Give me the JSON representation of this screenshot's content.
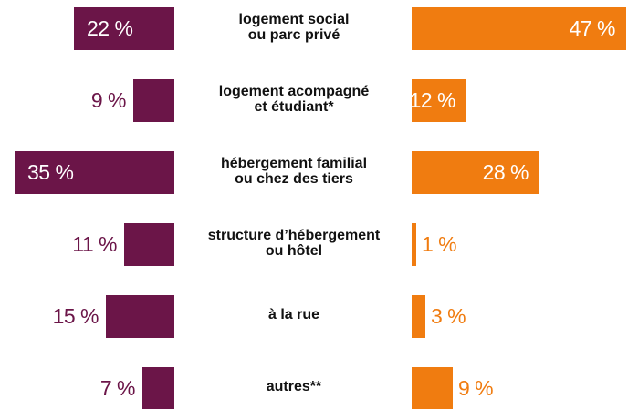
{
  "chart_data": {
    "type": "butterfly-bar",
    "categories": [
      "logement social\nou parc privé",
      "logement acompagné\net étudiant*",
      "hébergement familial\nou chez des tiers",
      "structure d’hébergement\nou hôtel",
      "à la rue",
      "autres**"
    ],
    "series": [
      {
        "color": "#6b1548",
        "values": [
          22,
          9,
          35,
          11,
          15,
          7
        ],
        "value_labels": [
          "22 %",
          "9 %",
          "35 %",
          "11 %",
          "15 %",
          "7 %"
        ]
      },
      {
        "color": "#f07c10",
        "values": [
          47,
          12,
          28,
          1,
          3,
          9
        ],
        "value_labels": [
          "47 %",
          "12 %",
          "28 %",
          "1 %",
          "3 %",
          "9 %"
        ]
      }
    ]
  }
}
